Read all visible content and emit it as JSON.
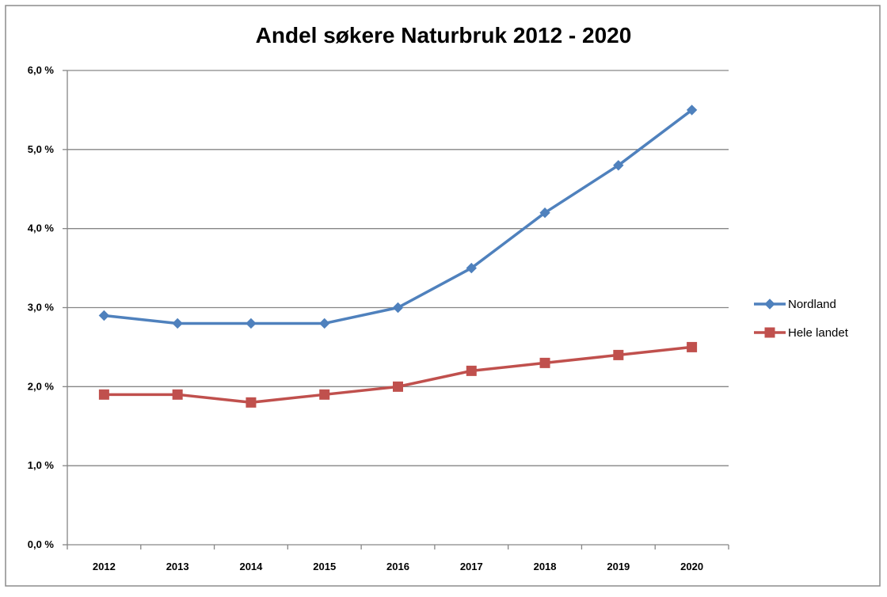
{
  "chart_data": {
    "type": "line",
    "title": "Andel søkere Naturbruk  2012 - 2020",
    "xlabel": "",
    "ylabel": "",
    "categories": [
      "2012",
      "2013",
      "2014",
      "2015",
      "2016",
      "2017",
      "2018",
      "2019",
      "2020"
    ],
    "y_ticks": [
      0,
      1,
      2,
      3,
      4,
      5,
      6
    ],
    "y_tick_labels": [
      "0,0 %",
      "1,0 %",
      "2,0 %",
      "3,0 %",
      "4,0 %",
      "5,0 %",
      "6,0 %"
    ],
    "ylim": [
      0,
      6
    ],
    "unit": "%",
    "grid": true,
    "legend_position": "right",
    "series": [
      {
        "name": "Nordland",
        "values": [
          2.9,
          2.8,
          2.8,
          2.8,
          3.0,
          3.5,
          4.2,
          4.8,
          5.5
        ],
        "color": "#4f81bd",
        "marker": "diamond"
      },
      {
        "name": "Hele landet",
        "values": [
          1.9,
          1.9,
          1.8,
          1.9,
          2.0,
          2.2,
          2.3,
          2.4,
          2.5
        ],
        "color": "#c0504d",
        "marker": "square"
      }
    ]
  }
}
